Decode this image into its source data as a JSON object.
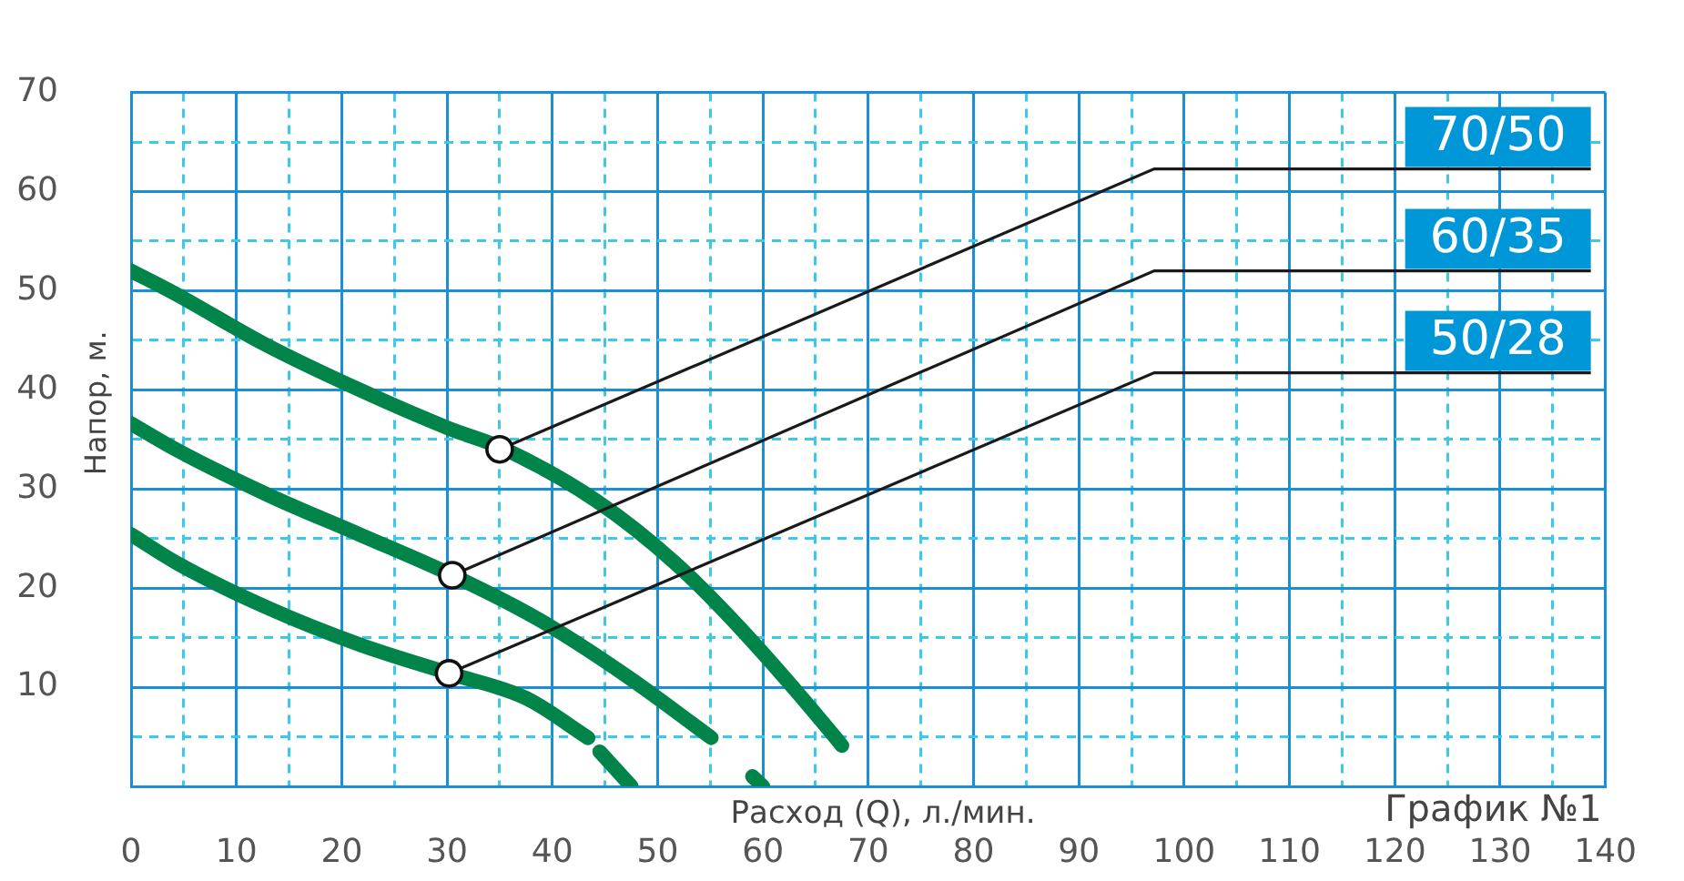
{
  "chart_data": {
    "type": "line",
    "xlabel": "Расход (Q), л./мин.",
    "ylabel": "Напор, м.",
    "xlim": [
      0,
      140
    ],
    "ylim": [
      0,
      70
    ],
    "xticks": [
      {
        "value": 0,
        "label": "0"
      },
      {
        "value": 5,
        "label": null
      },
      10,
      {
        "value": 15,
        "label": null
      },
      20,
      {
        "value": 25,
        "label": null
      },
      30,
      {
        "value": 35,
        "label": null
      },
      40,
      {
        "value": 45,
        "label": null
      },
      50,
      {
        "value": 55,
        "label": null
      },
      60,
      {
        "value": 65,
        "label": null
      },
      70,
      {
        "value": 75,
        "label": null
      },
      80,
      {
        "value": 85,
        "label": null
      },
      90,
      {
        "value": 95,
        "label": null
      },
      100,
      {
        "value": 105,
        "label": null
      },
      110,
      {
        "value": 115,
        "label": null
      },
      120,
      {
        "value": 125,
        "label": null
      },
      130,
      {
        "value": 135,
        "label": null
      },
      140
    ],
    "yticks": [
      {
        "value": 0,
        "label": null
      },
      {
        "value": 5,
        "label": null
      },
      10,
      {
        "value": 15,
        "label": null
      },
      20,
      {
        "value": 25,
        "label": null
      },
      30,
      {
        "value": 35,
        "label": null
      },
      40,
      {
        "value": 45,
        "label": null
      },
      50,
      {
        "value": 55,
        "label": null
      },
      60,
      {
        "value": 65,
        "label": null
      },
      70
    ],
    "grid": true,
    "legend": false,
    "line_style": "solid",
    "series": [
      {
        "color": "#00844a",
        "x": [
          0,
          4.2,
          12.7,
          21.7,
          30.2,
          35.3,
          44.2,
          51.7,
          58.5,
          66.9,
          67.5
        ],
        "values": [
          52,
          49.7,
          44.6,
          40,
          36.1,
          34.1,
          28.8,
          22.5,
          15.2,
          4.9,
          4.1
        ]
      },
      {
        "color": "#00844a",
        "x": [
          0,
          4.4,
          13.2,
          21.7,
          30.5,
          38.6,
          47.1,
          55.1,
          57,
          59,
          60
        ],
        "values": [
          36.6,
          33.9,
          29.3,
          25.4,
          21.3,
          16.9,
          11.1,
          4.9,
          null,
          1,
          0
        ]
      },
      {
        "color": "#00844a",
        "x": [
          0,
          4.4,
          13.2,
          21.7,
          30.2,
          37.5,
          43.4,
          44,
          44.5,
          47.5
        ],
        "values": [
          25.4,
          22.5,
          17.9,
          14.3,
          11.4,
          8.9,
          4.9,
          null,
          3.5,
          0
        ]
      }
    ],
    "annotations": [
      {
        "text": "70/50",
        "x": 35,
        "y": 34
      },
      {
        "text": "60/35",
        "x": 30.5,
        "y": 21.3
      },
      {
        "text": "50/28",
        "x": 30.2,
        "y": 11.4
      },
      "График №1"
    ]
  }
}
